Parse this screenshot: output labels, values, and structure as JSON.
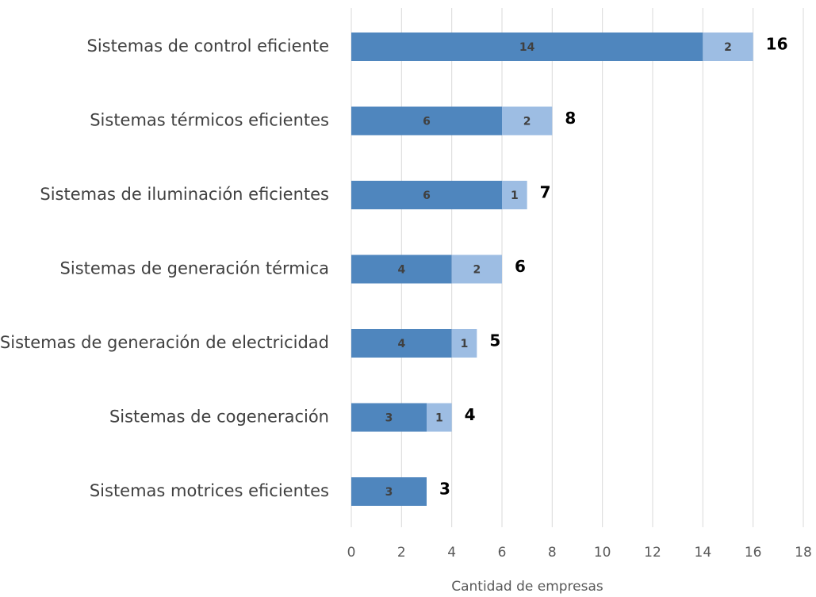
{
  "chart_data": {
    "type": "stacked_barh",
    "categories": [
      "Sistemas de control eficiente",
      "Sistemas térmicos eficientes",
      "Sistemas de iluminación eficientes",
      "Sistemas de generación térmica",
      "Sistemas de generación de electricidad",
      "Sistemas de cogeneración",
      "Sistemas motrices eficientes"
    ],
    "series": [
      {
        "color": "#4f86be",
        "values": [
          14,
          6,
          6,
          4,
          4,
          3,
          3
        ]
      },
      {
        "color": "#9dbde3",
        "values": [
          2,
          2,
          1,
          2,
          1,
          1,
          null
        ]
      }
    ],
    "totals": [
      16,
      8,
      7,
      6,
      5,
      4,
      3
    ],
    "xlabel": "Cantidad de empresas",
    "xlim": [
      0,
      18
    ],
    "xticks": [
      0,
      2,
      4,
      6,
      8,
      10,
      12,
      14,
      16,
      18
    ],
    "grid": true
  }
}
